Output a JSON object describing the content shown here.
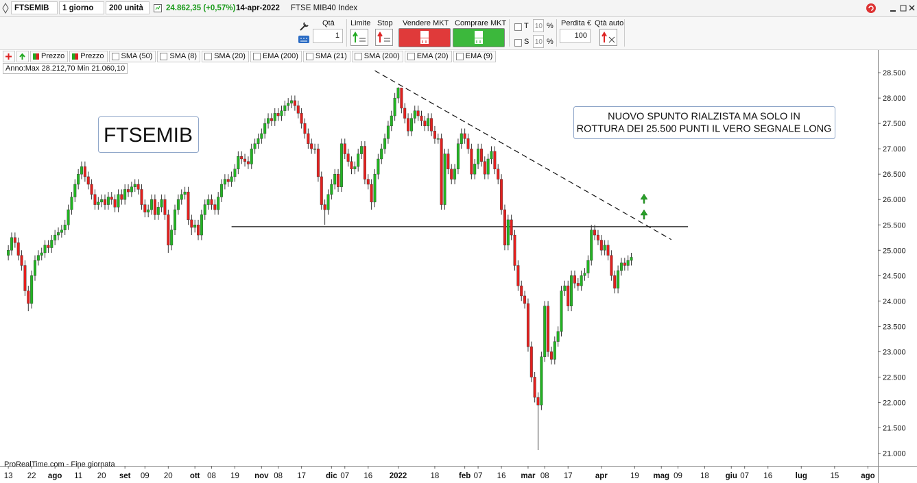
{
  "toolbar": {
    "symbol": "FTSEMIB",
    "period": "1 giorno",
    "units": "200 unità",
    "price": "24.862,35 (+0,57%)",
    "date": "14-apr-2022",
    "name": "FTSE MIB40 Index"
  },
  "order_bar": {
    "qty_label": "Qtà",
    "qty": "1",
    "limit": "Limite",
    "stop": "Stop",
    "sell": "Vendere MKT",
    "buy": "Comprare MKT",
    "t": "T",
    "t_value": "10",
    "t_unit": "%",
    "s": "S",
    "s_value": "10",
    "s_unit": "%",
    "loss_label": "Perdita €",
    "loss": "100",
    "auto_qty": "Qtà auto"
  },
  "indicators": [
    "Prezzo",
    "Prezzo",
    "SMA (50)",
    "SMA (8)",
    "SMA (20)",
    "EMA (200)",
    "SMA (21)",
    "SMA (200)",
    "EMA (20)",
    "EMA (9)"
  ],
  "chart_data": {
    "type": "candlestick",
    "stats": "Anno:Max 28.212,70 Min 21.060,10",
    "footer": "ProRealTime.com - Fine giornata",
    "annotations": [
      {
        "lines": [
          "FTSEMIB"
        ]
      },
      {
        "lines": [
          "NUOVO SPUNTO RIALZISTA MA SOLO IN",
          "ROTTURA DEI 25.500 PUNTI IL VERO SEGNALE LONG"
        ]
      }
    ],
    "up_color": "#22b422",
    "down_color": "#e3201e",
    "open": [
      24900,
      25000,
      25250,
      25150,
      24900,
      24700,
      24200,
      23950,
      24500,
      24800,
      24900,
      24950,
      25100,
      25050,
      25200,
      25300,
      25350,
      25400,
      25500,
      25800,
      26050,
      26300,
      26500,
      26650,
      26450,
      26300,
      26100,
      25900,
      25950,
      26000,
      25900,
      26050,
      26000,
      25850,
      26100,
      26000,
      26200,
      26150,
      26250,
      26300,
      26200,
      25900,
      25750,
      25800,
      26000,
      25700,
      25850,
      26000,
      25700,
      25100,
      25400,
      25800,
      26000,
      26100,
      26150,
      25600,
      25450,
      25500,
      25300,
      25700,
      25900,
      26000,
      25900,
      25800,
      26050,
      26300,
      26400,
      26350,
      26450,
      26600,
      26850,
      26800,
      26750,
      26700,
      27000,
      27100,
      27200,
      27300,
      27500,
      27600,
      27550,
      27700,
      27650,
      27750,
      27850,
      27900,
      27950,
      27850,
      27700,
      27500,
      27300,
      27100,
      27000,
      27000,
      26450,
      25900,
      25800,
      26100,
      26300,
      26500,
      26250,
      27100,
      26900,
      26750,
      26600,
      26650,
      26900,
      27050,
      26400,
      26300,
      25950,
      26500,
      26800,
      27000,
      27200,
      27450,
      27650,
      28000,
      28200,
      27800,
      27600,
      27350,
      27600,
      27750,
      27650,
      27550,
      27450,
      27600,
      27350,
      27200,
      27200,
      25900,
      26900,
      26600,
      26400,
      26600,
      27100,
      27300,
      27200,
      27000,
      26500,
      26700,
      27000,
      26750,
      26500,
      26800,
      26950,
      26600,
      26400,
      25800,
      25100,
      25600,
      25300,
      24700,
      24300,
      24100,
      23950,
      23100,
      22500,
      22100,
      21950,
      22900,
      23900,
      23000,
      22850,
      23200,
      23400,
      24200,
      24300,
      23900,
      24500,
      24350,
      24300,
      24500,
      24550,
      24800,
      25400,
      25300,
      25200,
      25000,
      25100,
      24900,
      24500,
      24250,
      24600,
      24750,
      24700,
      24800
    ],
    "high": [
      25100,
      25350,
      25350,
      25250,
      25000,
      24800,
      24300,
      24600,
      24900,
      25000,
      25050,
      25200,
      25200,
      25300,
      25400,
      25450,
      25500,
      25600,
      25900,
      26150,
      26400,
      26600,
      26750,
      26750,
      26550,
      26400,
      26200,
      26050,
      26100,
      26100,
      26150,
      26150,
      26100,
      26200,
      26200,
      26300,
      26300,
      26350,
      26400,
      26400,
      26300,
      26000,
      25900,
      26100,
      26100,
      25950,
      26100,
      26100,
      25800,
      25500,
      25900,
      26100,
      26200,
      26250,
      26250,
      25700,
      25600,
      25600,
      25800,
      26000,
      26100,
      26100,
      26000,
      26150,
      26400,
      26500,
      26500,
      26550,
      26700,
      26950,
      26950,
      26900,
      26850,
      27100,
      27200,
      27300,
      27400,
      27600,
      27700,
      27700,
      27800,
      27800,
      27850,
      27950,
      28000,
      28050,
      28050,
      27950,
      27800,
      27600,
      27400,
      27200,
      27100,
      27100,
      26550,
      26000,
      26200,
      26400,
      26600,
      26600,
      27200,
      27200,
      27000,
      26850,
      26750,
      27000,
      27150,
      27150,
      26500,
      26400,
      26600,
      26900,
      27100,
      27300,
      27550,
      27750,
      28100,
      28212.7,
      28200,
      27900,
      27700,
      27700,
      27850,
      27850,
      27750,
      27650,
      27700,
      27700,
      27450,
      27300,
      27300,
      27000,
      27000,
      26700,
      26700,
      27200,
      27400,
      27400,
      27300,
      27100,
      26800,
      27100,
      27100,
      26850,
      26900,
      27050,
      27050,
      26700,
      26500,
      25900,
      25700,
      25700,
      25400,
      24800,
      24400,
      24200,
      24050,
      23200,
      22600,
      22200,
      23000,
      24000,
      24000,
      23100,
      23300,
      23500,
      24300,
      24400,
      24400,
      24600,
      24600,
      24450,
      24600,
      24650,
      24900,
      25500,
      25500,
      25400,
      25300,
      25200,
      25200,
      25000,
      24600,
      24700,
      24850,
      24850,
      24900,
      24950
    ],
    "low": [
      24800,
      24900,
      25050,
      24800,
      24600,
      24100,
      23800,
      23850,
      24400,
      24700,
      24800,
      24850,
      24950,
      24950,
      25100,
      25200,
      25250,
      25300,
      25400,
      25700,
      25950,
      26200,
      26400,
      26350,
      26200,
      26000,
      25800,
      25800,
      25850,
      25800,
      25800,
      25900,
      25750,
      25750,
      25900,
      25900,
      26050,
      26050,
      26150,
      26100,
      25800,
      25650,
      25650,
      25700,
      25600,
      25600,
      25750,
      25600,
      24950,
      25000,
      25300,
      25700,
      25900,
      26000,
      25500,
      25300,
      25350,
      25200,
      25200,
      25600,
      25800,
      25800,
      25700,
      25700,
      25950,
      26200,
      26250,
      26250,
      26350,
      26500,
      26700,
      26650,
      26600,
      26600,
      26900,
      27000,
      27100,
      27200,
      27400,
      27450,
      27450,
      27550,
      27550,
      27650,
      27750,
      27800,
      27750,
      27600,
      27400,
      27200,
      27000,
      26900,
      26900,
      26350,
      25800,
      25500,
      25700,
      26000,
      26200,
      26150,
      26150,
      26800,
      26650,
      26500,
      26500,
      26550,
      26800,
      26300,
      26200,
      25800,
      25850,
      26400,
      26700,
      26900,
      27100,
      27350,
      27550,
      27900,
      27700,
      27500,
      27250,
      27250,
      27500,
      27550,
      27450,
      27350,
      27350,
      27250,
      27100,
      27100,
      25800,
      25800,
      26500,
      26300,
      26300,
      26500,
      27000,
      27100,
      26900,
      26400,
      26400,
      26600,
      26650,
      26400,
      26400,
      26700,
      26500,
      26300,
      25700,
      25000,
      25000,
      25200,
      24600,
      24200,
      24000,
      23850,
      23000,
      22400,
      22000,
      21060.1,
      21850,
      22800,
      22900,
      22750,
      22750,
      23100,
      23300,
      24100,
      23800,
      23800,
      24250,
      24200,
      24200,
      24400,
      24450,
      24700,
      25200,
      25100,
      24900,
      24900,
      24800,
      24400,
      24150,
      24150,
      24500,
      24600,
      24600,
      24700
    ],
    "close": [
      25000,
      25250,
      25150,
      24900,
      24700,
      24200,
      23950,
      24500,
      24800,
      24900,
      24950,
      25100,
      25050,
      25200,
      25300,
      25350,
      25400,
      25500,
      25800,
      26050,
      26300,
      26500,
      26650,
      26450,
      26300,
      26100,
      25900,
      25950,
      26000,
      25900,
      26050,
      26000,
      25850,
      26100,
      26000,
      26200,
      26150,
      26250,
      26300,
      26200,
      25900,
      25750,
      25800,
      26000,
      25700,
      25850,
      26000,
      25700,
      25100,
      25400,
      25800,
      26000,
      26100,
      26150,
      25600,
      25450,
      25500,
      25300,
      25700,
      25900,
      26000,
      25900,
      25800,
      26050,
      26300,
      26400,
      26350,
      26450,
      26600,
      26850,
      26800,
      26750,
      26700,
      27000,
      27100,
      27200,
      27300,
      27500,
      27600,
      27550,
      27700,
      27650,
      27750,
      27850,
      27900,
      27950,
      27850,
      27700,
      27500,
      27300,
      27100,
      27000,
      27000,
      26450,
      25900,
      25800,
      26100,
      26300,
      26500,
      26250,
      27100,
      26900,
      26750,
      26600,
      26650,
      26900,
      27050,
      26400,
      26300,
      25950,
      26500,
      26800,
      27000,
      27200,
      27450,
      27650,
      28000,
      28200,
      27800,
      27600,
      27350,
      27600,
      27750,
      27650,
      27550,
      27450,
      27600,
      27350,
      27200,
      27200,
      25900,
      26900,
      26600,
      26400,
      26600,
      27100,
      27300,
      27200,
      27000,
      26500,
      26700,
      27000,
      26750,
      26500,
      26800,
      26950,
      26600,
      26400,
      25800,
      25100,
      25600,
      25300,
      24700,
      24300,
      24100,
      23950,
      23100,
      22500,
      22100,
      21950,
      22900,
      23900,
      23000,
      22850,
      23200,
      23400,
      24200,
      24300,
      23900,
      24500,
      24350,
      24300,
      24500,
      24550,
      24800,
      25400,
      25300,
      25200,
      25000,
      25100,
      24900,
      24500,
      24250,
      24600,
      24750,
      24700,
      24800,
      24862.35
    ],
    "lines": [
      {
        "style": "solid",
        "x": [
          67,
          204
        ],
        "y": [
          25465,
          25465
        ]
      },
      {
        "style": "dashed",
        "x": [
          110,
          199
        ],
        "y": [
          28540,
          25210
        ]
      }
    ],
    "ylim": [
      20750,
      28920
    ],
    "yticks": [
      {
        "value": 21000,
        "label": "21.000"
      },
      {
        "value": 21500,
        "label": "21.500"
      },
      {
        "value": 22000,
        "label": "22.000"
      },
      {
        "value": 22500,
        "label": "22.500"
      },
      {
        "value": 23000,
        "label": "23.000"
      },
      {
        "value": 23500,
        "label": "23.500"
      },
      {
        "value": 24000,
        "label": "24.000"
      },
      {
        "value": 24500,
        "label": "24.500"
      },
      {
        "value": 25000,
        "label": "25.000"
      },
      {
        "value": 25500,
        "label": "25.500"
      },
      {
        "value": 26000,
        "label": "26.000"
      },
      {
        "value": 26500,
        "label": "26.500"
      },
      {
        "value": 27000,
        "label": "27.000"
      },
      {
        "value": 27500,
        "label": "27.500"
      },
      {
        "value": 28000,
        "label": "28.000"
      },
      {
        "value": 28500,
        "label": "28.500"
      }
    ],
    "xlim": [
      -2.5,
      261
    ],
    "xticks": [
      {
        "value": 0,
        "label": "13"
      },
      {
        "value": 7,
        "label": "22"
      },
      {
        "value": 14,
        "label": "ago"
      },
      {
        "value": 21,
        "label": "11"
      },
      {
        "value": 28,
        "label": "20"
      },
      {
        "value": 35,
        "label": "set"
      },
      {
        "value": 41,
        "label": "09"
      },
      {
        "value": 48,
        "label": "20"
      },
      {
        "value": 56,
        "label": "ott"
      },
      {
        "value": 61,
        "label": "08"
      },
      {
        "value": 68,
        "label": "19"
      },
      {
        "value": 76,
        "label": "nov"
      },
      {
        "value": 81,
        "label": "08"
      },
      {
        "value": 88,
        "label": "17"
      },
      {
        "value": 97,
        "label": "dic"
      },
      {
        "value": 101,
        "label": "07"
      },
      {
        "value": 108,
        "label": "16"
      },
      {
        "value": 117,
        "label": "2022"
      },
      {
        "value": 128,
        "label": "18"
      },
      {
        "value": 137,
        "label": "feb"
      },
      {
        "value": 141,
        "label": "07"
      },
      {
        "value": 148,
        "label": "16"
      },
      {
        "value": 156,
        "label": "mar"
      },
      {
        "value": 161,
        "label": "08"
      },
      {
        "value": 168,
        "label": "17"
      },
      {
        "value": 178,
        "label": "apr"
      },
      {
        "value": 188,
        "label": "19"
      },
      {
        "value": 196,
        "label": "mag"
      },
      {
        "value": 201,
        "label": "09"
      },
      {
        "value": 209,
        "label": "18"
      },
      {
        "value": 217,
        "label": "giu"
      },
      {
        "value": 221,
        "label": "07"
      },
      {
        "value": 228,
        "label": "16"
      },
      {
        "value": 238,
        "label": "lug"
      },
      {
        "value": 248,
        "label": "15"
      },
      {
        "value": 258,
        "label": "ago"
      }
    ]
  }
}
